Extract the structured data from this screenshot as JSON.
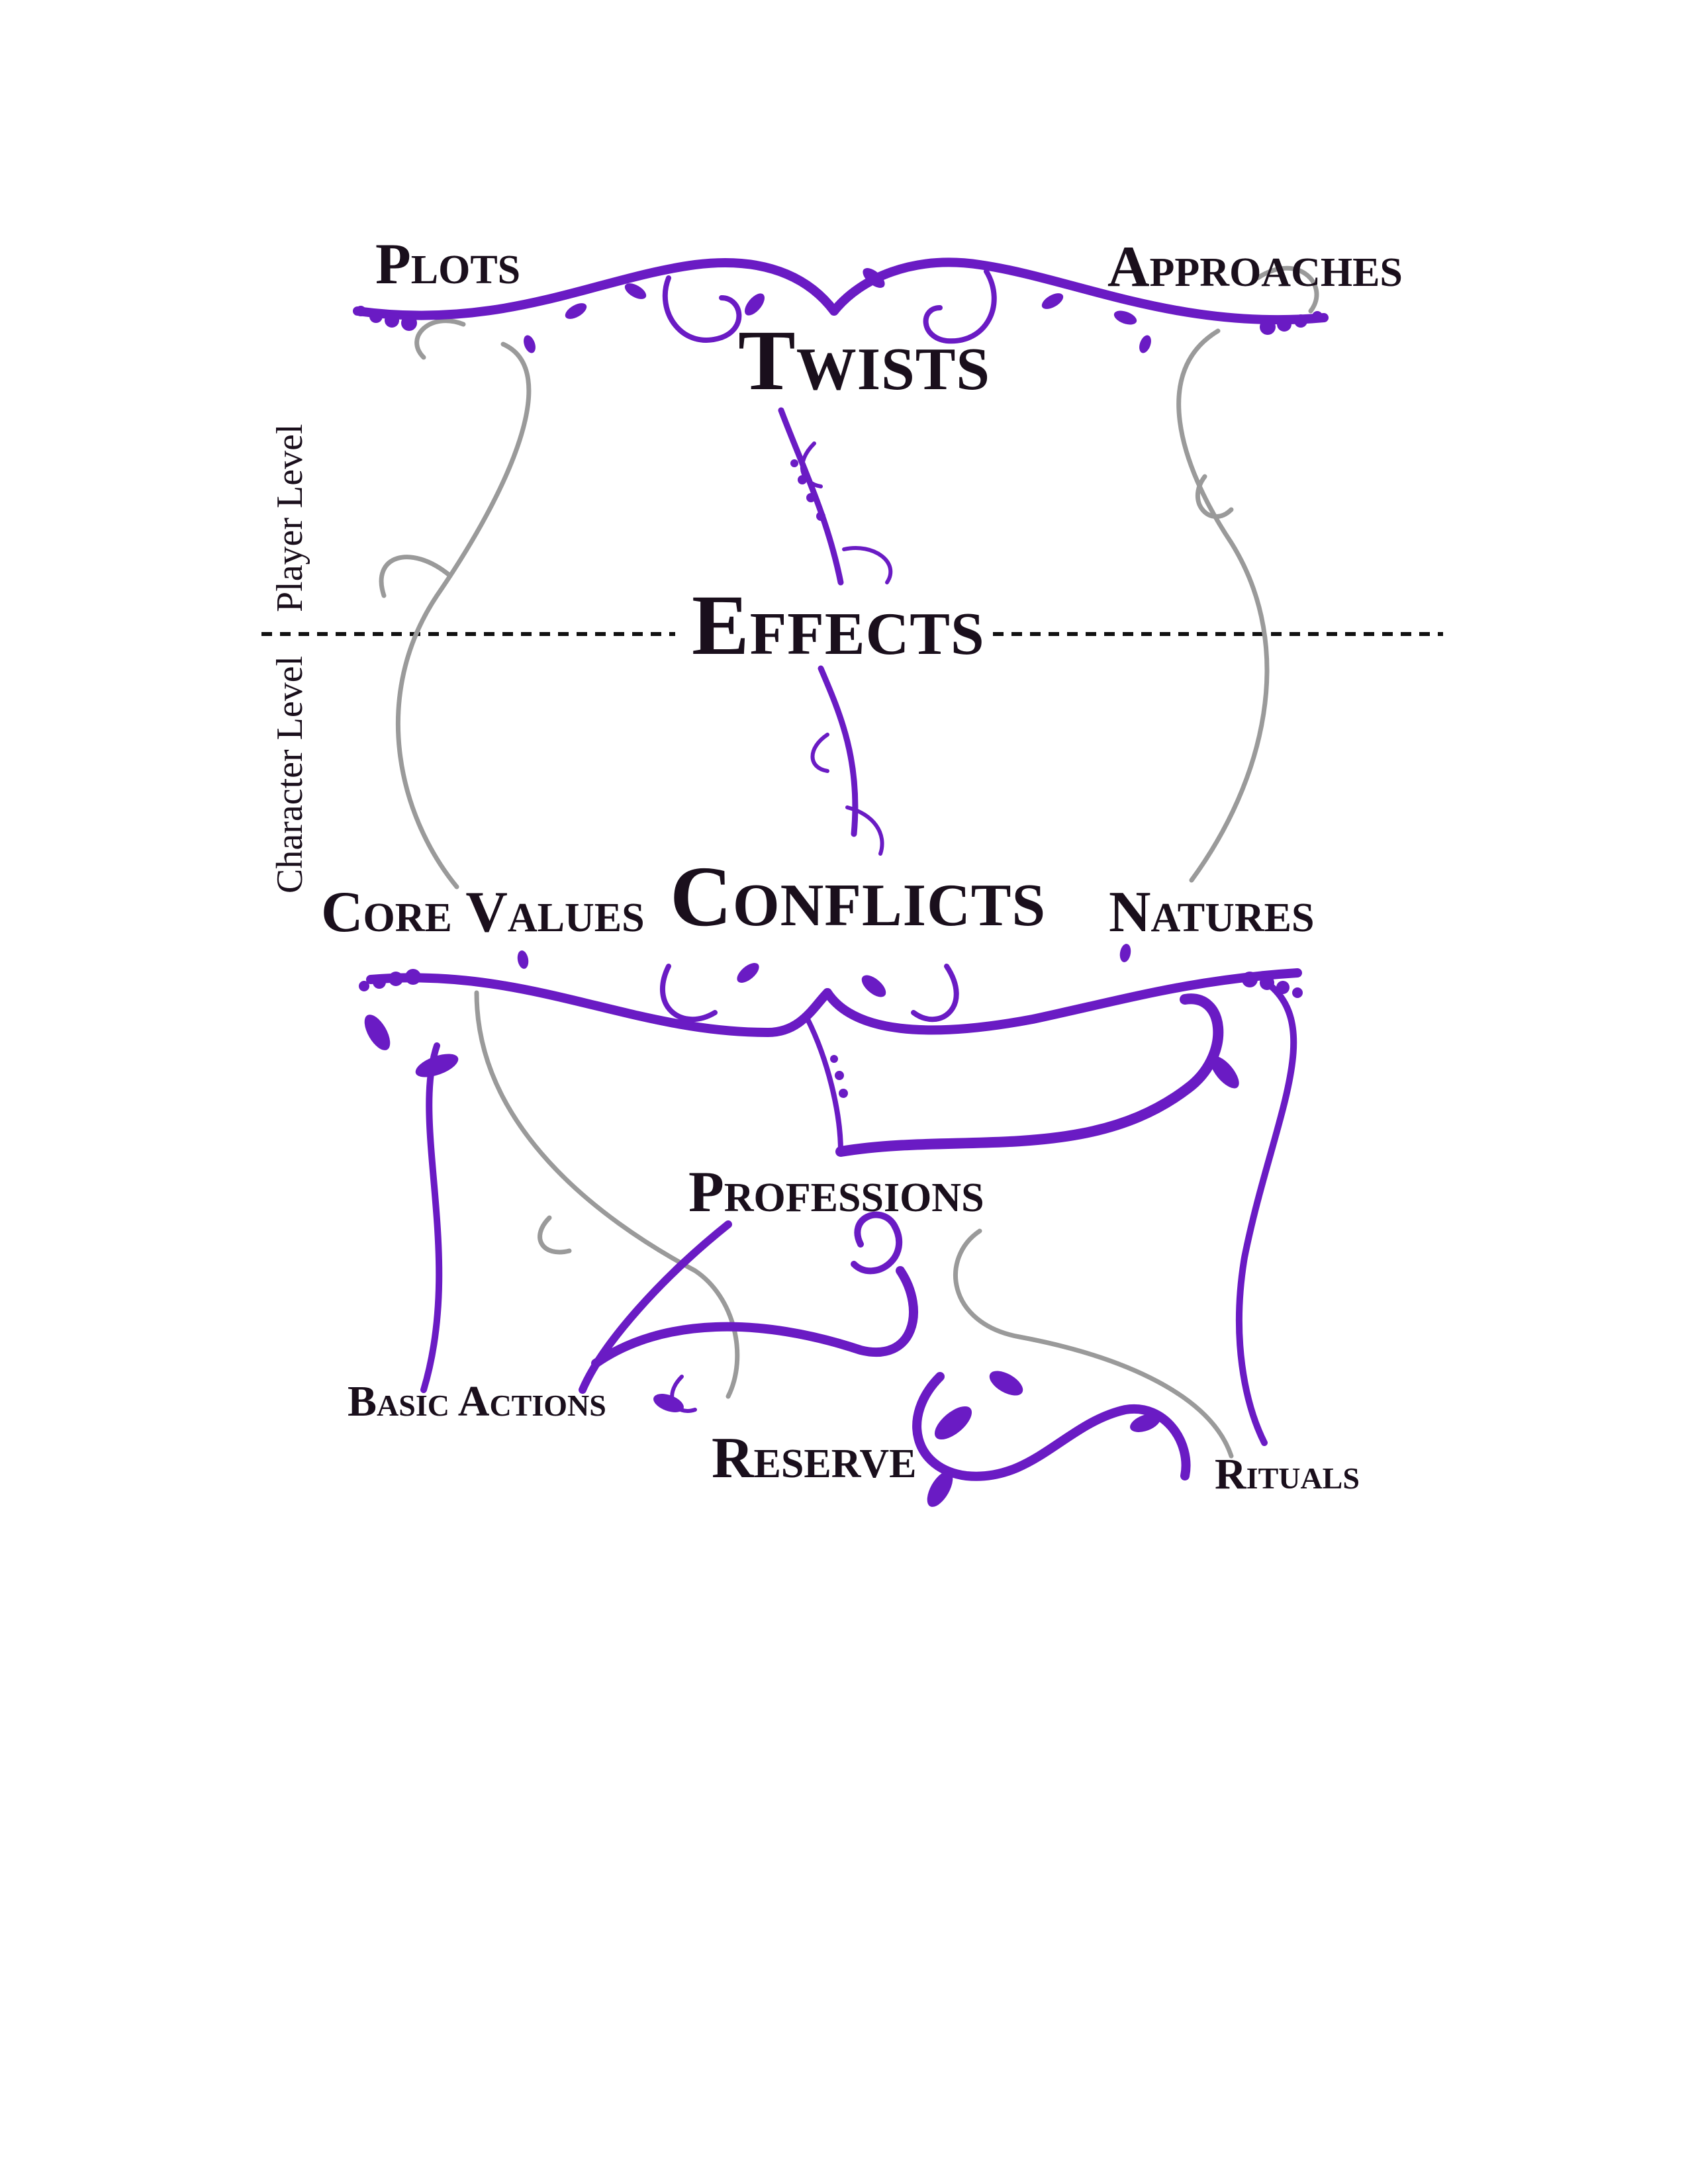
{
  "diagram": {
    "labels": {
      "plots": "Plots",
      "approaches": "Approaches",
      "twists": "Twists",
      "effects": "Effects",
      "conflicts": "Conflicts",
      "core_values": "Core Values",
      "natures": "Natures",
      "professions": "Professions",
      "basic_actions": "Basic Actions",
      "reserve": "Reserve",
      "rituals": "Rituals"
    },
    "levels": {
      "player": "Player Level",
      "character": "Character Level"
    }
  },
  "colors": {
    "vine_primary": "#6a1bc4",
    "vine_secondary": "#9a9a9a",
    "text": "#1a0f1c",
    "divider": "#111111"
  }
}
